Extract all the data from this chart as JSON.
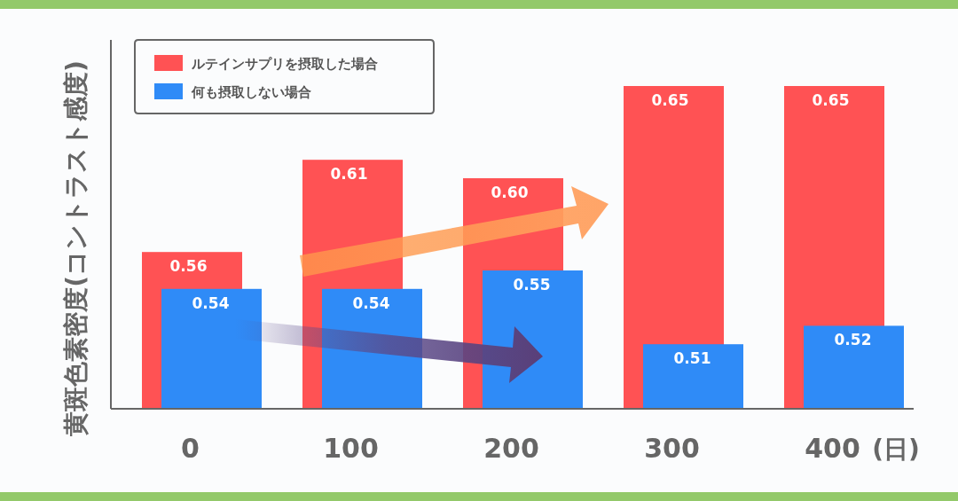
{
  "chart_data": {
    "type": "bar",
    "ylabel": "黄斑色素密度(コントラスト感度)",
    "xlabel": "(日)",
    "categories": [
      "0",
      "100",
      "200",
      "300",
      "400"
    ],
    "series": [
      {
        "name": "ルテインサプリを摂取した場合",
        "color": "#ff5254",
        "values": [
          0.56,
          0.61,
          0.6,
          0.65,
          0.65
        ],
        "value_labels": [
          "0.56",
          "0.61",
          "0.60",
          "0.65",
          "0.65"
        ]
      },
      {
        "name": "何も摂取しない場合",
        "color": "#2f8bf7",
        "values": [
          0.54,
          0.54,
          0.55,
          0.51,
          0.52
        ],
        "value_labels": [
          "0.54",
          "0.54",
          "0.55",
          "0.51",
          "0.52"
        ]
      }
    ],
    "ylim": [
      0.475,
      0.675
    ],
    "tick_labels": "x",
    "data_labels": true,
    "legend": "top left",
    "grid": false
  }
}
